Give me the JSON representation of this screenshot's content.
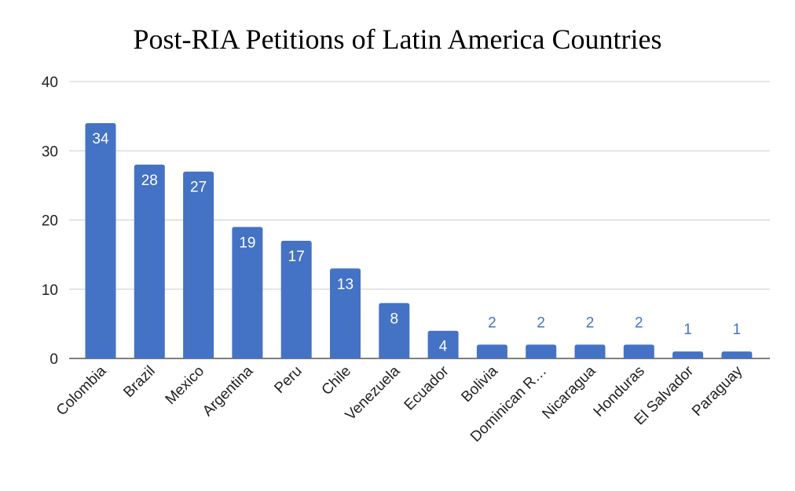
{
  "chart_data": {
    "type": "bar",
    "title": "Post-RIA Petitions of Latin America Countries",
    "xlabel": "",
    "ylabel": "",
    "ylim": [
      0,
      40
    ],
    "yticks": [
      "0",
      "10",
      "20",
      "30",
      "40"
    ],
    "grid": true,
    "legend": "none",
    "bar_color": "#4472c4",
    "categories": [
      "Colombia",
      "Brazil",
      "Mexico",
      "Argentina",
      "Peru",
      "Chile",
      "Venezuela",
      "Ecuador",
      "Bolivia",
      "Dominican R…",
      "Nicaragua",
      "Honduras",
      "El Salvador",
      "Paraguay"
    ],
    "values": [
      34,
      28,
      27,
      19,
      17,
      13,
      8,
      4,
      2,
      2,
      2,
      2,
      1,
      1
    ],
    "data_labels": [
      "34",
      "28",
      "27",
      "19",
      "17",
      "13",
      "8",
      "4",
      "2",
      "2",
      "2",
      "2",
      "1",
      "1"
    ]
  }
}
